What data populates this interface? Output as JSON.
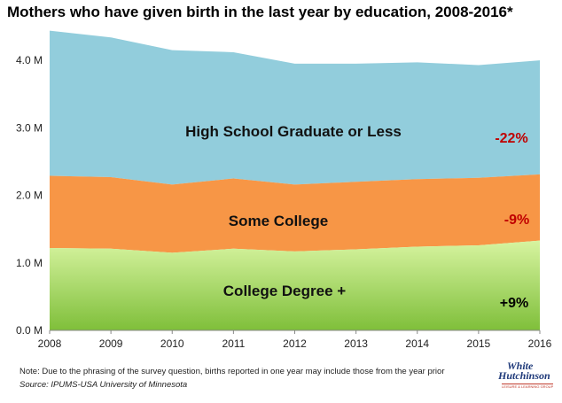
{
  "title": "Mothers who have given birth in the last year by education, 2008-2016*",
  "note": "Note: Due to the phrasing of the survey question, births reported in one year may include those from the year prior",
  "source": "Source: IPUMS-USA University of Minnesota",
  "logo": {
    "line1": "White",
    "line2": "Hutchinson",
    "tagline": "LEISURE & LEARNING GROUP"
  },
  "colors": {
    "high_school": "#92cddc",
    "some_college": "#f79646",
    "college_degree_top": "#d7f4a0",
    "college_degree_bottom": "#7fbf3a",
    "negative_change": "#c00000",
    "positive_change": "#000000"
  },
  "chart_data": {
    "type": "area",
    "stacked": true,
    "x": [
      2008,
      2009,
      2010,
      2011,
      2012,
      2013,
      2014,
      2015,
      2016
    ],
    "ylim": [
      0,
      4.5
    ],
    "yticks": [
      0,
      1,
      2,
      3,
      4
    ],
    "ytick_labels": [
      "0.0 M",
      "1.0 M",
      "2.0 M",
      "3.0 M",
      "4.0 M"
    ],
    "xtick_labels": [
      "2008",
      "2009",
      "2010",
      "2011",
      "2012",
      "2013",
      "2014",
      "2015",
      "2016"
    ],
    "grid": false,
    "series": [
      {
        "name": "College Degree +",
        "change": "+9%",
        "values": [
          1.22,
          1.21,
          1.15,
          1.21,
          1.17,
          1.2,
          1.24,
          1.26,
          1.33
        ]
      },
      {
        "name": "Some College",
        "change": "-9%",
        "values": [
          1.07,
          1.06,
          1.01,
          1.04,
          0.99,
          1.0,
          1.0,
          1.0,
          0.98
        ]
      },
      {
        "name": "High School Graduate or Less",
        "change": "-22%",
        "values": [
          2.15,
          2.07,
          1.99,
          1.87,
          1.79,
          1.75,
          1.73,
          1.67,
          1.69
        ]
      }
    ]
  }
}
